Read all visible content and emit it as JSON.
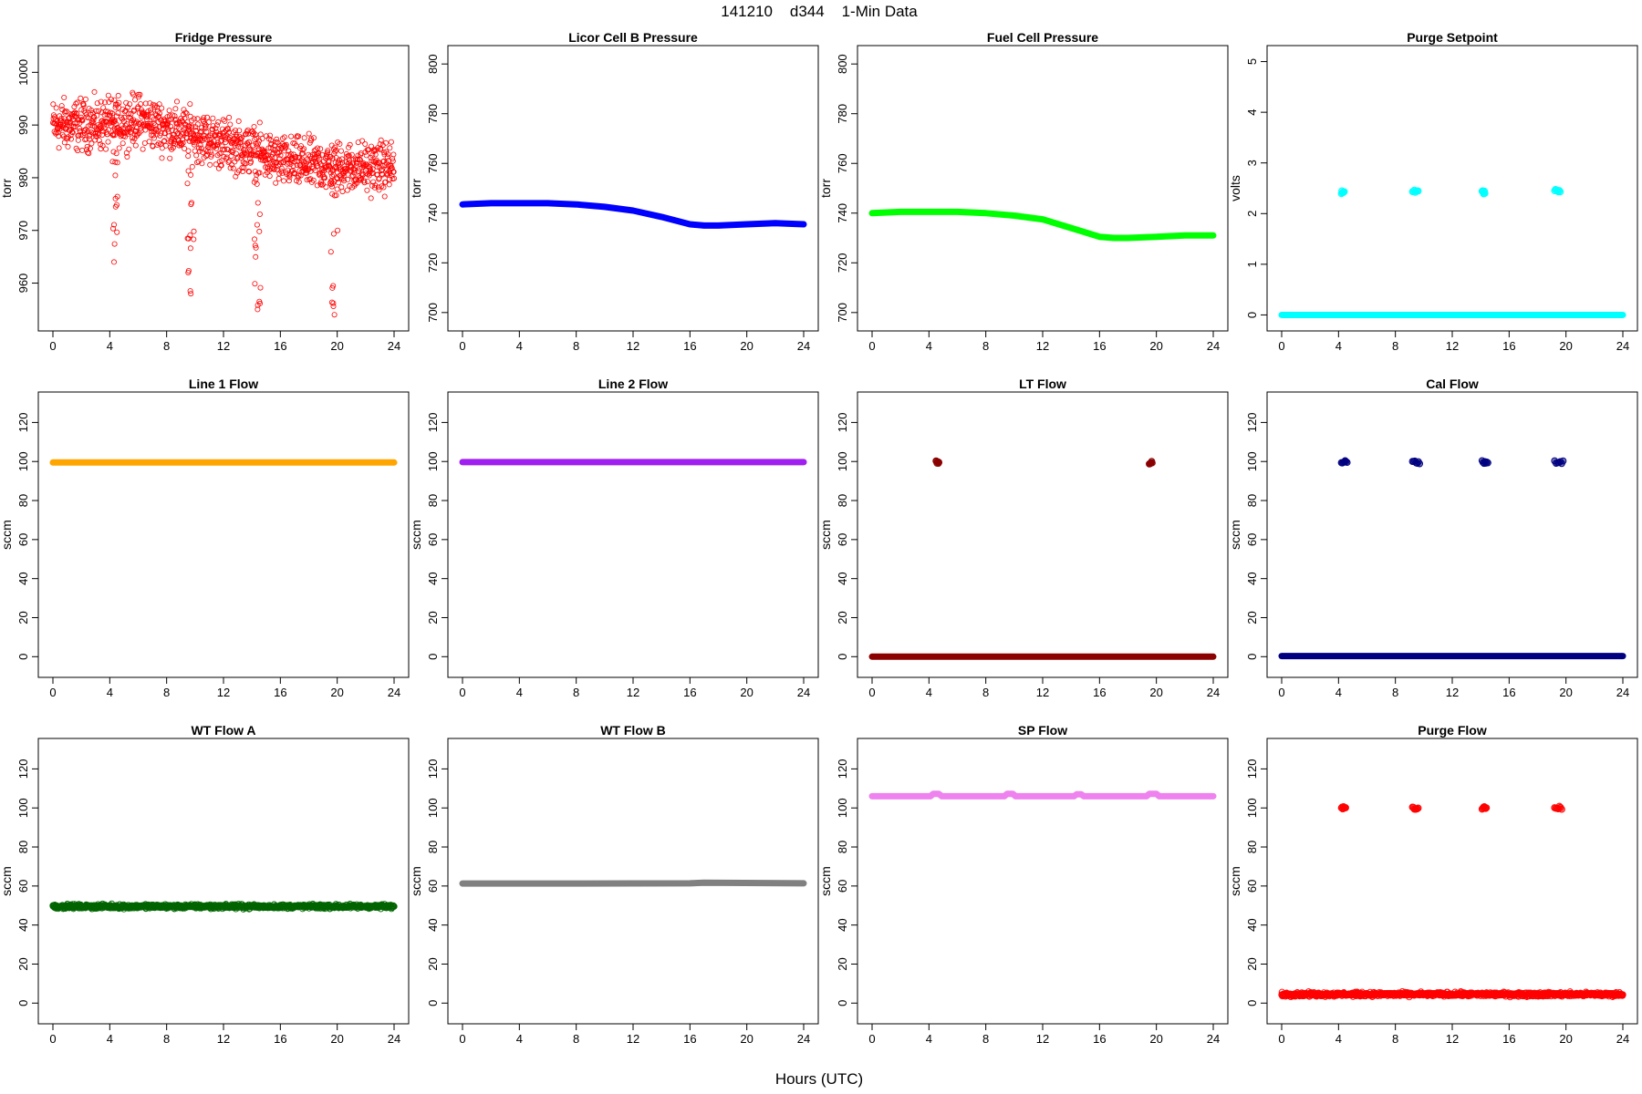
{
  "figure": {
    "title": "141210    d344    1-Min Data",
    "xlabel": "Hours (UTC)"
  },
  "chart_data": [
    {
      "type": "scatter",
      "title": "Fridge Pressure",
      "ylabel": "torr",
      "color": "#ff0000",
      "marker": "open",
      "xlim": [
        0,
        24
      ],
      "ylim": [
        953,
        1003
      ],
      "x_ticks": [
        0,
        4,
        8,
        12,
        16,
        20,
        24
      ],
      "y_ticks": [
        960,
        970,
        980,
        990,
        1000
      ],
      "trend": [
        [
          0,
          990
        ],
        [
          4,
          990
        ],
        [
          6,
          991
        ],
        [
          10,
          988
        ],
        [
          14,
          985
        ],
        [
          16,
          983
        ],
        [
          20,
          982
        ],
        [
          24,
          982
        ]
      ],
      "noise": 5,
      "dips": [
        [
          4.3,
          964
        ],
        [
          9.7,
          958
        ],
        [
          14.4,
          955
        ],
        [
          19.8,
          954
        ]
      ]
    },
    {
      "type": "line",
      "title": "Licor Cell B Pressure",
      "ylabel": "torr",
      "color": "#0000ff",
      "xlim": [
        0,
        24
      ],
      "ylim": [
        697,
        803
      ],
      "x_ticks": [
        0,
        4,
        8,
        12,
        16,
        20,
        24
      ],
      "y_ticks": [
        700,
        720,
        740,
        760,
        780,
        800
      ],
      "x": [
        0,
        2,
        4,
        6,
        8,
        10,
        12,
        14,
        16,
        17,
        18,
        20,
        22,
        24
      ],
      "y": [
        743.5,
        744,
        744,
        744,
        743.5,
        742.5,
        741,
        738.5,
        735.5,
        735,
        735,
        735.5,
        736,
        735.5
      ]
    },
    {
      "type": "line",
      "title": "Fuel Cell Pressure",
      "ylabel": "torr",
      "color": "#00ff00",
      "xlim": [
        0,
        24
      ],
      "ylim": [
        697,
        803
      ],
      "x_ticks": [
        0,
        4,
        8,
        12,
        16,
        20,
        24
      ],
      "y_ticks": [
        700,
        720,
        740,
        760,
        780,
        800
      ],
      "x": [
        0,
        2,
        4,
        6,
        8,
        10,
        12,
        14,
        16,
        17,
        18,
        20,
        22,
        24
      ],
      "y": [
        740,
        740.5,
        740.5,
        740.5,
        740,
        739,
        737.5,
        734,
        730.5,
        730,
        730,
        730.5,
        731,
        731
      ]
    },
    {
      "type": "scatter",
      "title": "Purge Setpoint",
      "ylabel": "volts",
      "color": "#00ffff",
      "xlim": [
        0,
        24
      ],
      "ylim": [
        -0.1,
        5.1
      ],
      "x_ticks": [
        0,
        4,
        8,
        12,
        16,
        20,
        24
      ],
      "y_ticks": [
        0,
        1,
        2,
        3,
        4,
        5
      ],
      "baseline": 0,
      "spikes": [
        {
          "x": [
            4.2,
            4.4
          ],
          "y": 2.42
        },
        {
          "x": [
            9.2,
            9.6
          ],
          "y": 2.45
        },
        {
          "x": [
            14.1,
            14.3
          ],
          "y": 2.42
        },
        {
          "x": [
            19.2,
            19.6
          ],
          "y": 2.45
        }
      ]
    },
    {
      "type": "line",
      "title": "Line 1 Flow",
      "ylabel": "sccm",
      "color": "#ffa500",
      "xlim": [
        0,
        24
      ],
      "ylim": [
        -5,
        130
      ],
      "x_ticks": [
        0,
        4,
        8,
        12,
        16,
        20,
        24
      ],
      "y_ticks": [
        0,
        20,
        40,
        60,
        80,
        100,
        120
      ],
      "x": [
        0,
        24
      ],
      "y": [
        99.5,
        99.5
      ]
    },
    {
      "type": "line",
      "title": "Line 2 Flow",
      "ylabel": "sccm",
      "color": "#a020f0",
      "xlim": [
        0,
        24
      ],
      "ylim": [
        -5,
        130
      ],
      "x_ticks": [
        0,
        4,
        8,
        12,
        16,
        20,
        24
      ],
      "y_ticks": [
        0,
        20,
        40,
        60,
        80,
        100,
        120
      ],
      "x": [
        0,
        24
      ],
      "y": [
        99.7,
        99.7
      ]
    },
    {
      "type": "scatter",
      "title": "LT Flow",
      "ylabel": "sccm",
      "color": "#8b0000",
      "xlim": [
        0,
        24
      ],
      "ylim": [
        -5,
        130
      ],
      "x_ticks": [
        0,
        4,
        8,
        12,
        16,
        20,
        24
      ],
      "y_ticks": [
        0,
        20,
        40,
        60,
        80,
        100,
        120
      ],
      "baseline": 0,
      "spikes": [
        {
          "x": [
            4.5,
            4.7
          ],
          "y": 99.5
        },
        {
          "x": [
            19.5,
            19.7
          ],
          "y": 99.5
        }
      ]
    },
    {
      "type": "scatter",
      "title": "Cal Flow",
      "ylabel": "sccm",
      "color": "#000080",
      "xlim": [
        0,
        24
      ],
      "ylim": [
        -5,
        130
      ],
      "x_ticks": [
        0,
        4,
        8,
        12,
        16,
        20,
        24
      ],
      "y_ticks": [
        0,
        20,
        40,
        60,
        80,
        100,
        120
      ],
      "baseline": 0.3,
      "spikes": [
        {
          "x": [
            4.2,
            4.6
          ],
          "y": 99.7
        },
        {
          "x": [
            9.2,
            9.7
          ],
          "y": 99.7
        },
        {
          "x": [
            14.1,
            14.5
          ],
          "y": 99.7
        },
        {
          "x": [
            19.2,
            19.8
          ],
          "y": 99.7
        }
      ]
    },
    {
      "type": "scatter",
      "title": "WT Flow A",
      "ylabel": "sccm",
      "color": "#006400",
      "xlim": [
        0,
        24
      ],
      "ylim": [
        -5,
        130
      ],
      "x_ticks": [
        0,
        4,
        8,
        12,
        16,
        20,
        24
      ],
      "y_ticks": [
        0,
        20,
        40,
        60,
        80,
        100,
        120
      ],
      "baseline": 49.5,
      "noise": 1.5
    },
    {
      "type": "line",
      "title": "WT Flow B",
      "ylabel": "sccm",
      "color": "#808080",
      "xlim": [
        0,
        24
      ],
      "ylim": [
        -5,
        130
      ],
      "x_ticks": [
        0,
        4,
        8,
        12,
        16,
        20,
        24
      ],
      "y_ticks": [
        0,
        20,
        40,
        60,
        80,
        100,
        120
      ],
      "x": [
        0,
        8,
        16,
        17,
        24
      ],
      "y": [
        61.3,
        61.3,
        61.4,
        61.7,
        61.4
      ]
    },
    {
      "type": "line",
      "title": "SP Flow",
      "ylabel": "sccm",
      "color": "#ee82ee",
      "xlim": [
        0,
        24
      ],
      "ylim": [
        -5,
        130
      ],
      "x_ticks": [
        0,
        4,
        8,
        12,
        16,
        20,
        24
      ],
      "y_ticks": [
        0,
        20,
        40,
        60,
        80,
        100,
        120
      ],
      "x": [
        0,
        4.1,
        4.3,
        4.7,
        4.9,
        9.3,
        9.5,
        9.9,
        10.1,
        14.2,
        14.4,
        14.7,
        14.9,
        19.3,
        19.5,
        20.0,
        20.2,
        24
      ],
      "y": [
        106,
        106,
        107.2,
        107.2,
        106,
        106,
        107.2,
        107.2,
        106,
        106,
        107,
        107,
        106,
        106,
        107.2,
        107.2,
        106,
        106
      ]
    },
    {
      "type": "scatter",
      "title": "Purge Flow",
      "ylabel": "sccm",
      "color": "#ff0000",
      "xlim": [
        0,
        24
      ],
      "ylim": [
        -5,
        130
      ],
      "x_ticks": [
        0,
        4,
        8,
        12,
        16,
        20,
        24
      ],
      "y_ticks": [
        0,
        20,
        40,
        60,
        80,
        100,
        120
      ],
      "baseline": 4.5,
      "noise": 1.5,
      "spikes": [
        {
          "x": [
            4.2,
            4.5
          ],
          "y": 100
        },
        {
          "x": [
            9.2,
            9.6
          ],
          "y": 100
        },
        {
          "x": [
            14.1,
            14.4
          ],
          "y": 100
        },
        {
          "x": [
            19.2,
            19.7
          ],
          "y": 100
        }
      ]
    }
  ]
}
